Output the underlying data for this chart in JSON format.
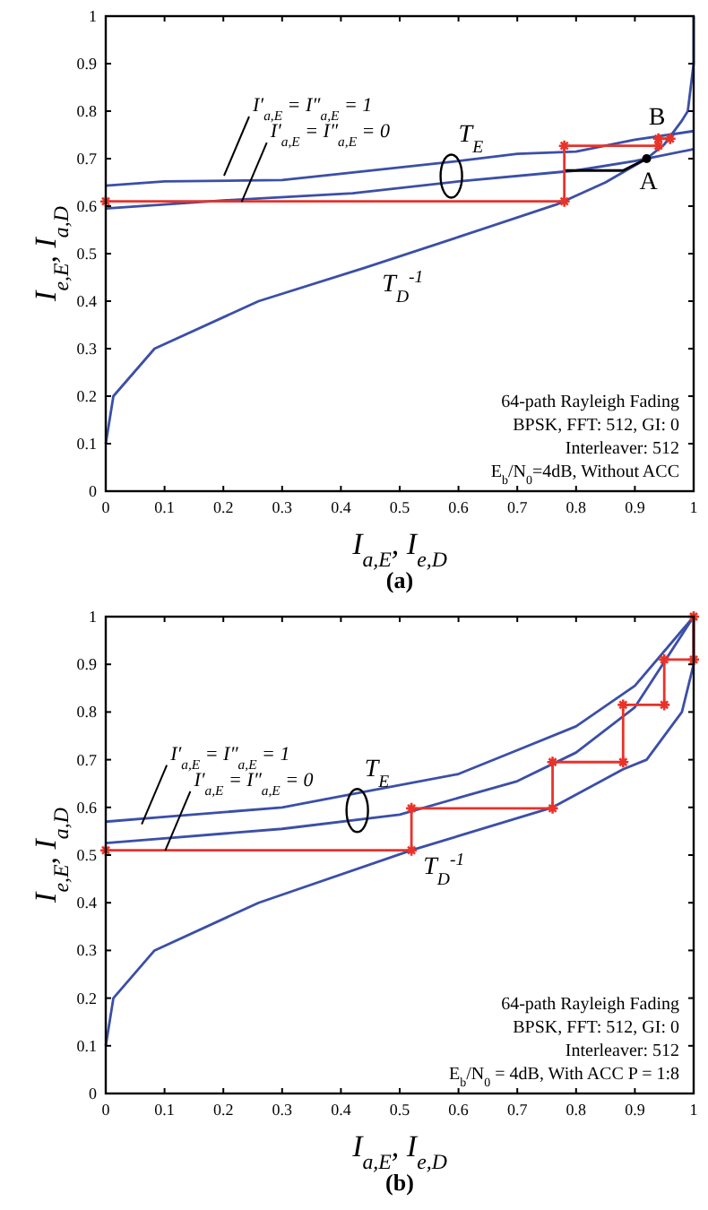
{
  "chart_data": [
    {
      "type": "line",
      "xlabel": "I$_{a,E}$, I$_{e,D}$",
      "ylabel": "I$_{e,E}$, I$_{a,D}$",
      "xlim": [
        0,
        1
      ],
      "ylim": [
        0,
        1
      ],
      "xticks": [
        0,
        0.1,
        0.2,
        0.3,
        0.4,
        0.5,
        0.6,
        0.7,
        0.8,
        0.9,
        1
      ],
      "yticks": [
        0,
        0.1,
        0.2,
        0.3,
        0.4,
        0.5,
        0.6,
        0.7,
        0.8,
        0.9,
        1
      ],
      "grid": false,
      "line_style": "solid",
      "series": [
        {
          "color": "#3b4fa8",
          "marker": "none",
          "x": [
            0,
            0.1,
            0.3,
            0.4,
            0.6,
            0.7,
            0.8,
            0.9,
            1
          ],
          "values": [
            0.643,
            0.652,
            0.655,
            0.668,
            0.695,
            0.71,
            0.715,
            0.74,
            0.758
          ]
        },
        {
          "color": "#3b4fa8",
          "marker": "none",
          "x": [
            0,
            0.2,
            0.42,
            0.6,
            0.8,
            0.9,
            1
          ],
          "values": [
            0.595,
            0.612,
            0.627,
            0.652,
            0.675,
            0.695,
            0.72
          ]
        },
        {
          "color": "#3b4fa8",
          "marker": "none",
          "x": [
            0,
            0.013,
            0.083,
            0.26,
            0.44,
            0.6,
            0.77,
            0.85,
            0.92,
            0.95,
            0.98,
            0.99,
            1,
            1
          ],
          "values": [
            0.1,
            0.2,
            0.3,
            0.4,
            0.47,
            0.535,
            0.605,
            0.65,
            0.7,
            0.73,
            0.78,
            0.8,
            0.9,
            1
          ]
        },
        {
          "color": "#000000",
          "marker": "none",
          "x": [
            0.78,
            0.88,
            0.92
          ],
          "values": [
            0.675,
            0.675,
            0.7
          ]
        },
        {
          "type": "scatter",
          "color": "#000000",
          "marker": "circle",
          "x": [
            0.92
          ],
          "values": [
            0.7
          ]
        },
        {
          "color": "#e8332a",
          "marker": "cross",
          "x": [
            0,
            0.78,
            0.78,
            0.94,
            0.94,
            0.96
          ],
          "values": [
            0.61,
            0.61,
            0.727,
            0.727,
            0.742,
            0.742
          ]
        }
      ],
      "annotations": [
        "I′$_{a,E}$ = I″$_{a,E}$ = 1",
        "I′$_{a,E}$ = I″$_{a,E}$ = 0",
        "T$_{E}$",
        "T$_{D}$$^{-1}$",
        {
          "text": "A",
          "x": 0.92,
          "y": 0.7
        },
        {
          "text": "B",
          "x": 0.96,
          "y": 0.742
        },
        "64-path Rayleigh Fading",
        "BPSK, FFT: 512, GI: 0",
        "Interleaver: 512",
        "E$_{b}$/N$_{0}$=4dB, Without ACC",
        "(a)"
      ]
    },
    {
      "type": "line",
      "xlabel": "I$_{a,E}$, I$_{e,D}$",
      "ylabel": "I$_{e,E}$, I$_{a,D}$",
      "xlim": [
        0,
        1
      ],
      "ylim": [
        0,
        1
      ],
      "xticks": [
        0,
        0.1,
        0.2,
        0.3,
        0.4,
        0.5,
        0.6,
        0.7,
        0.8,
        0.9,
        1
      ],
      "yticks": [
        0,
        0.1,
        0.2,
        0.3,
        0.4,
        0.5,
        0.6,
        0.7,
        0.8,
        0.9,
        1
      ],
      "grid": false,
      "line_style": "solid",
      "series": [
        {
          "color": "#3b4fa8",
          "marker": "none",
          "x": [
            0,
            0.1,
            0.3,
            0.45,
            0.6,
            0.7,
            0.8,
            0.9,
            1
          ],
          "values": [
            0.57,
            0.58,
            0.6,
            0.635,
            0.67,
            0.72,
            0.77,
            0.855,
            1
          ]
        },
        {
          "color": "#3b4fa8",
          "marker": "none",
          "x": [
            0,
            0.1,
            0.3,
            0.5,
            0.6,
            0.7,
            0.8,
            0.9,
            1
          ],
          "values": [
            0.525,
            0.535,
            0.555,
            0.585,
            0.62,
            0.655,
            0.715,
            0.81,
            1
          ]
        },
        {
          "color": "#3b4fa8",
          "marker": "none",
          "x": [
            0,
            0.013,
            0.083,
            0.26,
            0.52,
            0.76,
            0.88,
            0.92,
            0.98,
            1,
            1
          ],
          "values": [
            0.1,
            0.2,
            0.3,
            0.4,
            0.51,
            0.6,
            0.68,
            0.7,
            0.8,
            0.9,
            1
          ]
        },
        {
          "color": "#e8332a",
          "marker": "cross",
          "x": [
            0,
            0.52,
            0.52,
            0.76,
            0.76,
            0.88,
            0.88,
            0.95,
            0.95,
            1,
            1
          ],
          "values": [
            0.51,
            0.51,
            0.598,
            0.598,
            0.695,
            0.695,
            0.815,
            0.815,
            0.91,
            0.91,
            1
          ]
        }
      ],
      "annotations": [
        "I′$_{a,E}$ = I″$_{a,E}$ = 1",
        "I′$_{a,E}$ = I″$_{a,E}$ = 0",
        "T$_{E}$",
        "T$_{D}$$^{-1}$",
        "64-path Rayleigh Fading",
        "BPSK, FFT: 512, GI: 0",
        "Interleaver: 512",
        "E$_{b}$/N$_{0}$ = 4dB, With ACC P = 1:8",
        "(b)"
      ]
    }
  ]
}
